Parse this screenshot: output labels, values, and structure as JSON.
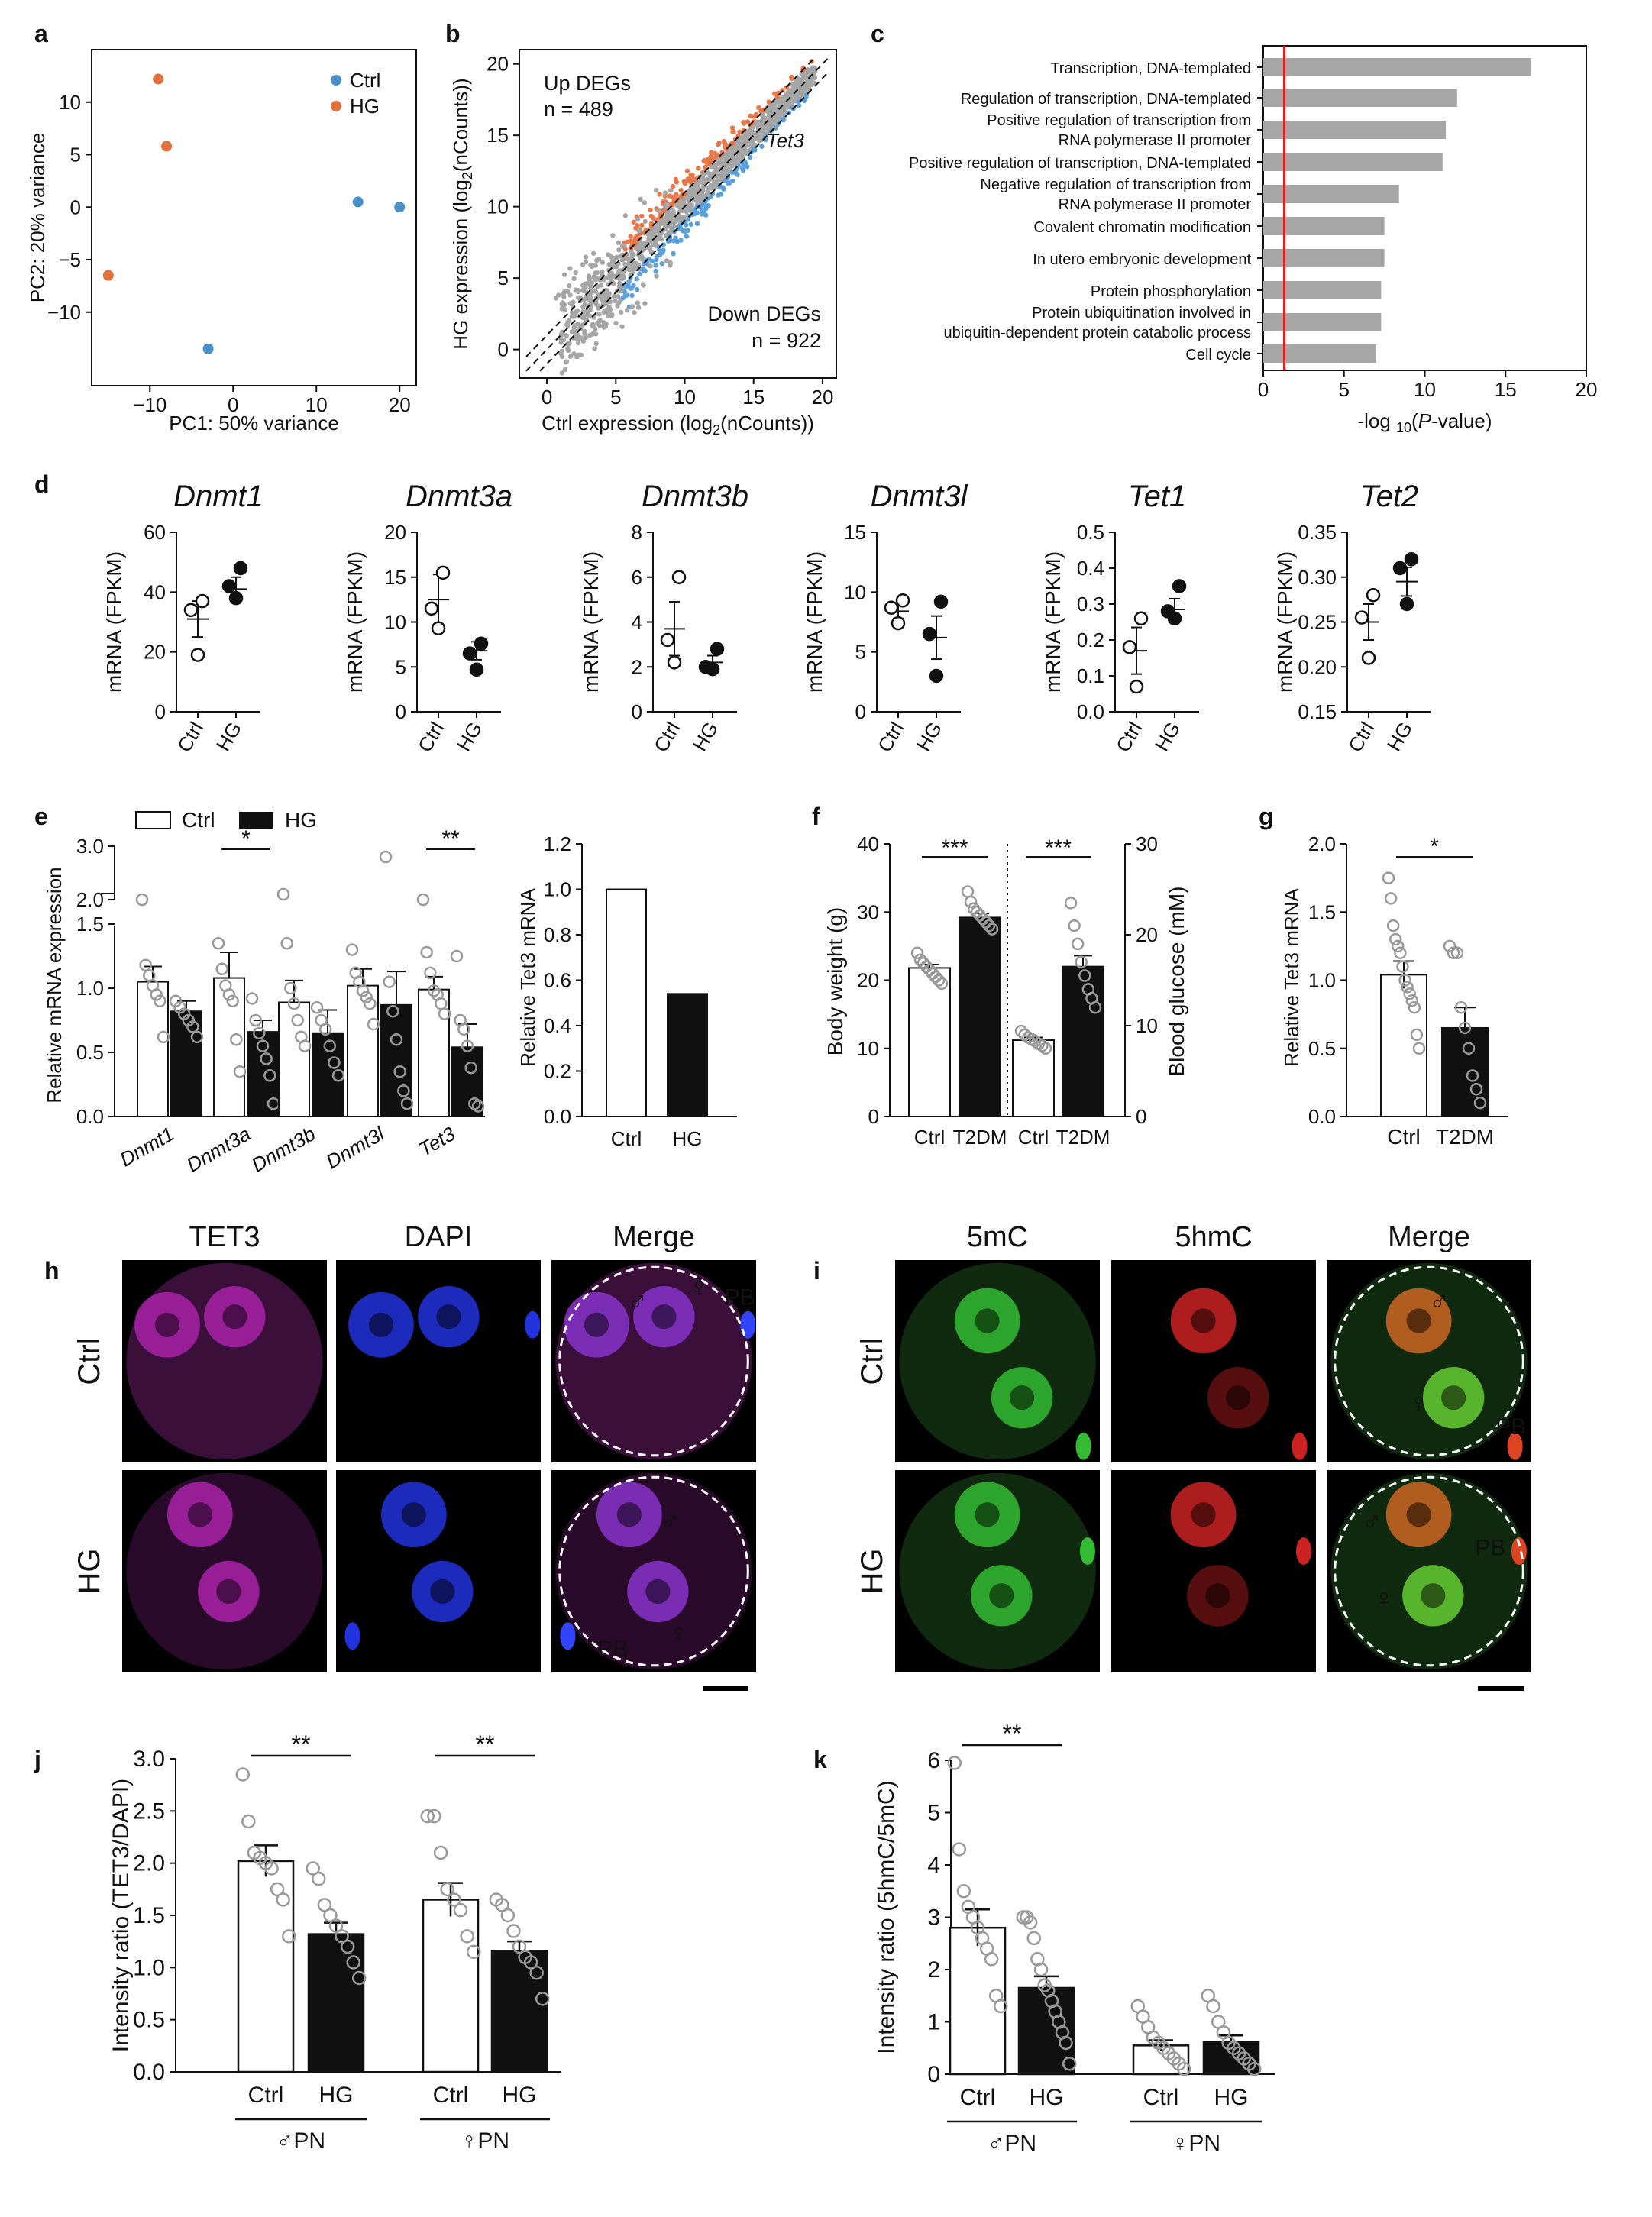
{
  "panels": {
    "a": {
      "tag": "a"
    },
    "b": {
      "tag": "b"
    },
    "c": {
      "tag": "c"
    },
    "d": {
      "tag": "d"
    },
    "e": {
      "tag": "e"
    },
    "f": {
      "tag": "f"
    },
    "g": {
      "tag": "g"
    },
    "h": {
      "tag": "h"
    },
    "i": {
      "tag": "i"
    },
    "j": {
      "tag": "j"
    },
    "k": {
      "tag": "k"
    }
  },
  "colors": {
    "ctrl": "#4a90c8",
    "hg": "#e0703c",
    "gray": "#a6a6a6",
    "red_line": "#e02020",
    "up": "#e8784a",
    "down": "#5aa0dc",
    "magenta": "#cc33cc",
    "blue": "#2233cc",
    "green": "#33cc33",
    "red": "#dd2222"
  },
  "chart_data": [
    {
      "id": "a",
      "type": "scatter",
      "xlabel": "PC1: 50% variance",
      "ylabel": "PC2: 20% variance",
      "xlim": [
        -17,
        22
      ],
      "ylim": [
        -17,
        15
      ],
      "xticks": [
        -10,
        0,
        10,
        20
      ],
      "yticks": [
        -10,
        -5,
        0,
        5,
        10
      ],
      "legend": [
        "Ctrl",
        "HG"
      ],
      "legend_position": "top-right",
      "series": [
        {
          "name": "Ctrl",
          "points": [
            [
              15,
              0.5
            ],
            [
              20,
              0
            ],
            [
              -3,
              -13.5
            ]
          ]
        },
        {
          "name": "HG",
          "points": [
            [
              -9,
              12.2
            ],
            [
              -8,
              5.8
            ],
            [
              -15,
              -6.5
            ]
          ]
        }
      ]
    },
    {
      "id": "b",
      "type": "scatter",
      "xlabel": "Ctrl expression (log2(nCounts))",
      "ylabel": "HG expression (log2(nCounts))",
      "xlim": [
        -2,
        21
      ],
      "ylim": [
        -2,
        21
      ],
      "xticks": [
        0,
        5,
        10,
        15,
        20
      ],
      "yticks": [
        0,
        5,
        10,
        15,
        20
      ],
      "annotations": [
        "Up DEGs",
        "n = 489",
        "Down DEGs",
        "n = 922",
        "Tet3"
      ],
      "up_count": 489,
      "down_count": 922
    },
    {
      "id": "c",
      "type": "bar",
      "orientation": "horizontal",
      "xlabel": "-log 10(P-value)",
      "xlim": [
        0,
        20
      ],
      "xticks": [
        0,
        5,
        10,
        15,
        20
      ],
      "threshold": 1.3,
      "categories": [
        [
          "Transcription, DNA-templated"
        ],
        [
          "Regulation of transcription, DNA-templated"
        ],
        [
          "Positive regulation of transcription from",
          "RNA polymerase II promoter"
        ],
        [
          "Positive regulation of transcription, DNA-templated"
        ],
        [
          "Negative regulation of transcription from",
          "RNA polymerase II promoter"
        ],
        [
          "Covalent chromatin modification"
        ],
        [
          "In utero embryonic development"
        ],
        [
          "Protein phosphorylation"
        ],
        [
          "Protein ubiquitination involved in",
          "ubiquitin-dependent protein catabolic process"
        ],
        [
          "Cell cycle"
        ]
      ],
      "values": [
        16.6,
        12.0,
        11.3,
        11.1,
        8.4,
        7.5,
        7.5,
        7.3,
        7.3,
        7.0
      ]
    },
    {
      "id": "d",
      "type": "scatter",
      "ylabel": "mRNA (FPKM)",
      "categories": [
        "Ctrl",
        "HG"
      ],
      "subplots": [
        {
          "gene": "Dnmt1",
          "yticks": [
            "0",
            "20",
            "40",
            "60"
          ],
          "ymin": 0,
          "ymax": 60,
          "ctrl": [
            37,
            34,
            19
          ],
          "hg": [
            48,
            42,
            38
          ],
          "ctrl_mean": 31,
          "ctrl_sem": 6,
          "hg_mean": 41,
          "hg_sem": 4
        },
        {
          "gene": "Dnmt3a",
          "yticks": [
            "0",
            "5",
            "10",
            "15",
            "20"
          ],
          "ymin": 0,
          "ymax": 20,
          "ctrl": [
            15.5,
            11.5,
            9.3
          ],
          "hg": [
            7.6,
            6.5,
            4.7
          ],
          "ctrl_mean": 12.5,
          "ctrl_sem": 2.8,
          "hg_mean": 6.8,
          "hg_sem": 1.0
        },
        {
          "gene": "Dnmt3b",
          "yticks": [
            "0",
            "2",
            "4",
            "6",
            "8"
          ],
          "ymin": 0,
          "ymax": 8,
          "ctrl": [
            6.0,
            3.2,
            2.2
          ],
          "hg": [
            2.8,
            2.0,
            1.9
          ],
          "ctrl_mean": 3.7,
          "ctrl_sem": 1.2,
          "hg_mean": 2.2,
          "hg_sem": 0.3
        },
        {
          "gene": "Dnmt3l",
          "yticks": [
            "0",
            "5",
            "10",
            "15"
          ],
          "ymin": 0,
          "ymax": 15,
          "ctrl": [
            9.3,
            8.7,
            7.4
          ],
          "hg": [
            9.2,
            6.5,
            3.0
          ],
          "ctrl_mean": 8.4,
          "ctrl_sem": 0.6,
          "hg_mean": 6.2,
          "hg_sem": 1.8
        },
        {
          "gene": "Tet1",
          "yticks": [
            "0.0",
            "0.1",
            "0.2",
            "0.3",
            "0.4",
            "0.5"
          ],
          "ymin": 0,
          "ymax": 0.5,
          "ctrl": [
            0.26,
            0.18,
            0.07
          ],
          "hg": [
            0.35,
            0.28,
            0.26
          ],
          "ctrl_mean": 0.17,
          "ctrl_sem": 0.065,
          "hg_mean": 0.285,
          "hg_sem": 0.03
        },
        {
          "gene": "Tet2",
          "yticks": [
            "0.15",
            "0.20",
            "0.25",
            "0.30",
            "0.35"
          ],
          "ymin": 0.15,
          "ymax": 0.35,
          "ctrl": [
            0.28,
            0.255,
            0.21
          ],
          "hg": [
            0.32,
            0.31,
            0.27
          ],
          "ctrl_mean": 0.25,
          "ctrl_sem": 0.02,
          "hg_mean": 0.295,
          "hg_sem": 0.016
        }
      ]
    },
    {
      "id": "e_left",
      "type": "bar",
      "ylabel": "Relative mRNA expression",
      "legend": [
        "Ctrl",
        "HG"
      ],
      "legend_position": "top",
      "categories": [
        "Dnmt1",
        "Dnmt3a",
        "Dnmt3b",
        "Dnmt3l",
        "Tet3"
      ],
      "yticks_low": [
        0.0,
        0.5,
        1.0,
        1.5
      ],
      "yticks_high": [
        2.0,
        3.0
      ],
      "ctrl_means": [
        1.05,
        1.08,
        0.89,
        1.02,
        0.99
      ],
      "ctrl_sems": [
        0.12,
        0.2,
        0.17,
        0.13,
        0.1
      ],
      "hg_means": [
        0.82,
        0.66,
        0.65,
        0.87,
        0.54
      ],
      "hg_sems": [
        0.08,
        0.09,
        0.18,
        0.26,
        0.18
      ],
      "significance": [
        "",
        "*",
        "",
        "",
        "**"
      ],
      "ctrl_points": [
        [
          2.0,
          1.18,
          1.1,
          1.02,
          0.95,
          0.9,
          0.62
        ],
        [
          1.35,
          1.15,
          1.02,
          0.95,
          0.9,
          0.6,
          0.35
        ],
        [
          2.1,
          1.35,
          1.0,
          0.88,
          0.75,
          0.62,
          0.55
        ],
        [
          1.3,
          1.12,
          1.05,
          0.98,
          0.93,
          0.88,
          0.72
        ],
        [
          2.0,
          1.28,
          1.12,
          0.98,
          0.95,
          0.88,
          0.8
        ]
      ],
      "hg_points": [
        [
          0.9,
          0.85,
          0.8,
          0.75,
          0.7,
          0.62
        ],
        [
          0.92,
          0.75,
          0.65,
          0.55,
          0.45,
          0.32,
          0.1
        ],
        [
          0.85,
          0.75,
          0.68,
          0.55,
          0.42,
          0.32
        ],
        [
          2.8,
          1.05,
          0.82,
          0.6,
          0.35,
          0.2,
          0.1
        ],
        [
          1.25,
          0.75,
          0.68,
          0.55,
          0.38,
          0.1,
          0.08
        ]
      ]
    },
    {
      "id": "e_right",
      "type": "bar",
      "ylabel": "Relative Tet3 mRNA",
      "categories": [
        "Ctrl",
        "HG"
      ],
      "values": [
        1.0,
        0.54
      ],
      "ylim": [
        0,
        1.2
      ],
      "yticks": [
        "0.0",
        "0.2",
        "0.4",
        "0.6",
        "0.8",
        "1.0",
        "1.2"
      ]
    },
    {
      "id": "f",
      "type": "bar",
      "ylabel_left": "Body weight (g)",
      "ylabel_right": "Blood glucose (mM)",
      "yticks_left": [
        "0",
        "10",
        "20",
        "30",
        "40"
      ],
      "yticks_right": [
        "0",
        "10",
        "20",
        "30"
      ],
      "categories": [
        "Ctrl",
        "T2DM",
        "Ctrl",
        "T2DM"
      ],
      "body_weight": {
        "ctrl_mean": 21.8,
        "ctrl_sem": 0.5,
        "t2dm_mean": 29.2,
        "t2dm_sem": 0.6,
        "ctrl_points": [
          24,
          23,
          22.5,
          22,
          21.5,
          21,
          20.5,
          20,
          19.5
        ],
        "t2dm_points": [
          33,
          31.5,
          30.5,
          30,
          29.5,
          29,
          28.5,
          28,
          27.5
        ],
        "significance": "***"
      },
      "blood_glucose": {
        "ctrl_mean": 8.4,
        "ctrl_sem": 0.3,
        "t2dm_mean": 16.5,
        "t2dm_sem": 1.2,
        "ctrl_points": [
          9.4,
          9.0,
          8.7,
          8.5,
          8.3,
          8.0,
          7.8,
          7.5
        ],
        "t2dm_points": [
          23.5,
          21,
          19,
          17,
          15.5,
          14,
          13,
          12
        ],
        "significance": "***"
      }
    },
    {
      "id": "g",
      "type": "bar",
      "ylabel": "Relative Tet3 mRNA",
      "categories": [
        "Ctrl",
        "T2DM"
      ],
      "yticks": [
        "0.0",
        "0.5",
        "1.0",
        "1.5",
        "2.0"
      ],
      "ylim": [
        0,
        2.0
      ],
      "means": [
        1.04,
        0.65
      ],
      "sems": [
        0.1,
        0.15
      ],
      "significance": "*",
      "ctrl_points": [
        1.75,
        1.6,
        1.4,
        1.3,
        1.25,
        1.2,
        1.1,
        1.0,
        0.95,
        0.9,
        0.85,
        0.8,
        0.6,
        0.5
      ],
      "t2dm_points": [
        1.25,
        1.2,
        1.2,
        0.8,
        0.65,
        0.5,
        0.3,
        0.2,
        0.1
      ]
    },
    {
      "id": "j",
      "type": "bar",
      "ylabel": "Intensity ratio (TET3/DAPI)",
      "categories": [
        "Ctrl",
        "HG",
        "Ctrl",
        "HG"
      ],
      "groups": [
        "♂PN",
        "♀PN"
      ],
      "yticks": [
        "0.0",
        "0.5",
        "1.0",
        "1.5",
        "2.0",
        "2.5",
        "3.0"
      ],
      "ylim": [
        0,
        3.0
      ],
      "means": [
        2.02,
        1.32,
        1.65,
        1.16
      ],
      "sems": [
        0.15,
        0.11,
        0.16,
        0.09
      ],
      "significance": [
        "**",
        "**"
      ],
      "points": [
        [
          2.85,
          2.4,
          2.1,
          2.05,
          2.0,
          1.95,
          1.75,
          1.65,
          1.3
        ],
        [
          1.95,
          1.85,
          1.6,
          1.5,
          1.4,
          1.3,
          1.2,
          1.05,
          0.9
        ],
        [
          2.45,
          2.45,
          2.1,
          1.75,
          1.65,
          1.55,
          1.3,
          1.15
        ],
        [
          1.65,
          1.6,
          1.5,
          1.35,
          1.2,
          1.1,
          1.05,
          0.95,
          0.7
        ]
      ]
    },
    {
      "id": "k",
      "type": "bar",
      "ylabel": "Intensity ratio (5hmC/5mC)",
      "categories": [
        "Ctrl",
        "HG",
        "Ctrl",
        "HG"
      ],
      "groups": [
        "♂PN",
        "♀PN"
      ],
      "yticks": [
        "0",
        "1",
        "2",
        "3",
        "4",
        "5",
        "6"
      ],
      "ylim": [
        0,
        6
      ],
      "means": [
        2.8,
        1.65,
        0.55,
        0.62
      ],
      "sems": [
        0.35,
        0.22,
        0.1,
        0.12
      ],
      "significance": [
        "**"
      ],
      "points": [
        [
          5.95,
          4.3,
          3.5,
          3.2,
          3.0,
          2.8,
          2.6,
          2.4,
          2.2,
          1.5,
          1.3
        ],
        [
          3.0,
          3.0,
          2.9,
          2.6,
          2.2,
          2.0,
          1.7,
          1.6,
          1.4,
          1.2,
          1.0,
          0.8,
          0.6,
          0.2
        ],
        [
          1.3,
          1.1,
          0.9,
          0.7,
          0.6,
          0.5,
          0.4,
          0.3,
          0.2,
          0.1
        ],
        [
          1.5,
          1.3,
          1.0,
          0.8,
          0.6,
          0.5,
          0.4,
          0.3,
          0.2,
          0.1
        ]
      ]
    }
  ],
  "images": {
    "h": {
      "columns": [
        "TET3",
        "DAPI",
        "Merge"
      ],
      "rows": [
        "Ctrl",
        "HG"
      ],
      "labels": {
        "male": "♂",
        "female": "♀",
        "pb": "PB"
      }
    },
    "i": {
      "columns": [
        "5mC",
        "5hmC",
        "Merge"
      ],
      "rows": [
        "Ctrl",
        "HG"
      ],
      "labels": {
        "male": "♂",
        "female": "♀",
        "pb": "PB"
      }
    }
  }
}
